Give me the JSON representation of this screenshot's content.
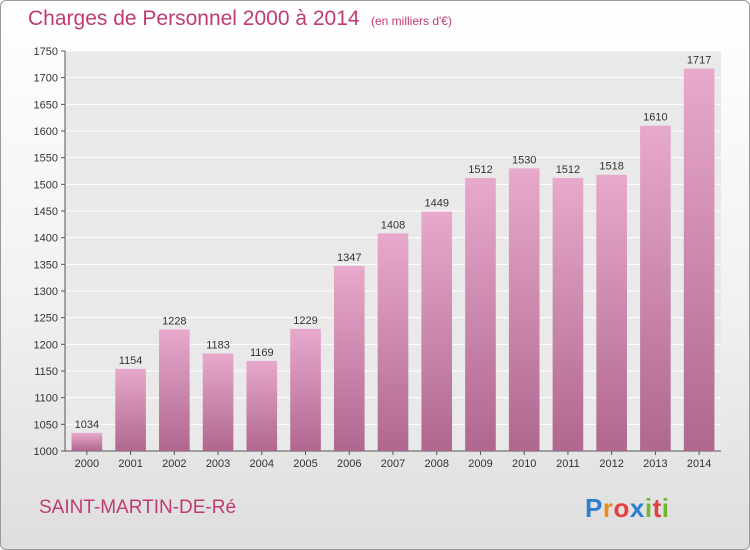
{
  "header": {
    "title": "Charges de Personnel 2000 à 2014",
    "subtitle": "(en milliers d'€)"
  },
  "footer": {
    "commune": "SAINT-MARTIN-DE-Ré",
    "logo_letters": [
      "P",
      "r",
      "o",
      "x",
      "i",
      "t",
      "i"
    ]
  },
  "colors": {
    "title": "#c03a74",
    "bar_top": "#e7a9cc",
    "bar_bottom": "#b0678f",
    "grid": "#ffffff",
    "plot_bg": "#e9e9e9"
  },
  "chart_data": {
    "type": "bar",
    "title": "Charges de Personnel 2000 à 2014",
    "subtitle": "(en milliers d'€)",
    "categories": [
      "2000",
      "2001",
      "2002",
      "2003",
      "2004",
      "2005",
      "2006",
      "2007",
      "2008",
      "2009",
      "2010",
      "2011",
      "2012",
      "2013",
      "2014"
    ],
    "values": [
      1034,
      1154,
      1228,
      1183,
      1169,
      1229,
      1347,
      1408,
      1449,
      1512,
      1530,
      1512,
      1518,
      1610,
      1717
    ],
    "ylim": [
      1000,
      1750
    ],
    "yticks": [
      1000,
      1050,
      1100,
      1150,
      1200,
      1250,
      1300,
      1350,
      1400,
      1450,
      1500,
      1550,
      1600,
      1650,
      1700,
      1750
    ],
    "grid": true,
    "xlabel": "",
    "ylabel": ""
  }
}
